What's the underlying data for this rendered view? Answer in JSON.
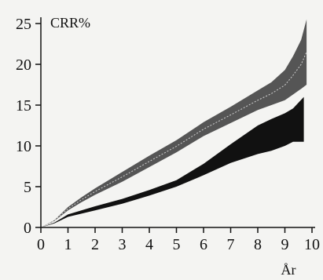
{
  "chart_data": {
    "type": "area",
    "ylabel": "CRR%",
    "xlabel": "År",
    "xlim": [
      0,
      10
    ],
    "ylim": [
      0,
      25
    ],
    "x_ticks": [
      "0",
      "1",
      "2",
      "3",
      "4",
      "5",
      "6",
      "7",
      "8",
      "9",
      "10"
    ],
    "y_ticks": [
      "0",
      "5",
      "10",
      "15",
      "20",
      "25"
    ],
    "grid": false,
    "series": [
      {
        "color": "#555555",
        "center_line": true,
        "x": [
          0,
          0.5,
          1,
          1.5,
          2,
          3,
          4,
          5,
          6,
          7,
          8,
          8.5,
          9,
          9.3,
          9.6,
          9.8
        ],
        "lower": [
          0,
          0.8,
          2.1,
          3.1,
          4.0,
          5.6,
          7.4,
          9.2,
          11.2,
          12.8,
          14.4,
          15.0,
          15.6,
          16.3,
          17.0,
          17.5
        ],
        "upper": [
          0,
          0.9,
          2.5,
          3.7,
          4.8,
          6.8,
          8.8,
          10.7,
          12.9,
          14.8,
          16.8,
          17.8,
          19.3,
          21.0,
          23.0,
          25.5
        ]
      },
      {
        "color": "#111111",
        "center_line": false,
        "x": [
          0,
          0.5,
          1,
          2,
          3,
          4,
          5,
          6,
          7,
          8,
          8.5,
          9,
          9.3,
          9.5,
          9.7
        ],
        "lower": [
          0,
          0.5,
          1.3,
          2.1,
          2.9,
          3.9,
          5.0,
          6.4,
          7.9,
          9.0,
          9.4,
          10.0,
          10.5,
          10.5,
          10.5
        ],
        "upper": [
          0,
          0.6,
          1.6,
          2.6,
          3.5,
          4.6,
          5.8,
          7.8,
          10.2,
          12.5,
          13.3,
          14.0,
          14.6,
          15.3,
          16.0
        ]
      }
    ]
  }
}
